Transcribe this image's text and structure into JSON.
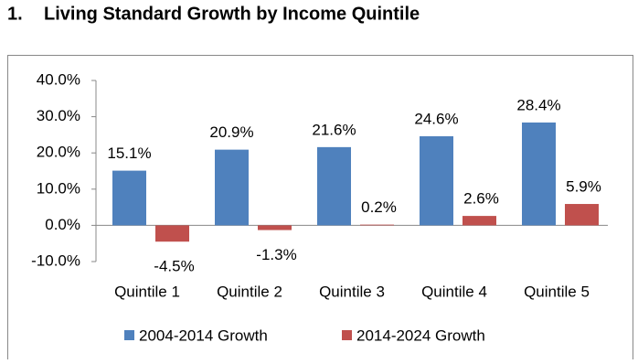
{
  "chart_data": {
    "type": "bar",
    "number": "1.",
    "title": "Living Standard Growth by Income Quintile",
    "categories": [
      "Quintile 1",
      "Quintile 2",
      "Quintile 3",
      "Quintile 4",
      "Quintile 5"
    ],
    "series": [
      {
        "name": "2004-2014 Growth",
        "color": "#4f81bd",
        "values": [
          15.1,
          20.9,
          21.6,
          24.6,
          28.4
        ],
        "value_labels": [
          "15.1%",
          "20.9%",
          "21.6%",
          "24.6%",
          "28.4%"
        ]
      },
      {
        "name": "2014-2024 Growth",
        "color": "#c0504d",
        "values": [
          -4.5,
          -1.3,
          0.2,
          2.6,
          5.9
        ],
        "value_labels": [
          "-4.5%",
          "-1.3%",
          "0.2%",
          "2.6%",
          "5.9%"
        ]
      }
    ],
    "ylim": [
      -10,
      40
    ],
    "yticks": [
      {
        "value": -10,
        "label": "-10.0%"
      },
      {
        "value": 0,
        "label": "0.0%"
      },
      {
        "value": 10,
        "label": "10.0%"
      },
      {
        "value": 20,
        "label": "20.0%"
      },
      {
        "value": 30,
        "label": "30.0%"
      },
      {
        "value": 40,
        "label": "40.0%"
      }
    ],
    "legend": "bottom"
  }
}
